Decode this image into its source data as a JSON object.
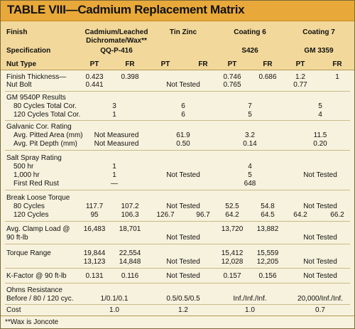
{
  "title": "TABLE VIII—Cadmium Replacement Matrix",
  "header": {
    "finish_label": "Finish",
    "spec_label": "Specification",
    "nut_type_label": "Nut Type",
    "col1_l1": "Cadmium/Leached",
    "col1_l2": "Dichromate/Wax**",
    "col1_spec": "QQ-P-416",
    "col2": "Tin Zinc",
    "col3": "Coating 6",
    "col3_spec": "S426",
    "col4": "Coating 7",
    "col4_spec": "GM 3359",
    "pt": "PT",
    "fr": "FR"
  },
  "rows": {
    "thickness_l1": "Finish Thickness—",
    "thickness_l2": "Nut Bolt",
    "th_c1pt": "0.423",
    "th_c1fr": "0.398",
    "th_c1b": "0.441",
    "th_c2": "Not Tested",
    "th_c3pt": "0.746",
    "th_c3fr": "0.686",
    "th_c3b": "0.765",
    "th_c4pt": "1.2",
    "th_c4fr": "1",
    "th_c4b": "0.77",
    "gm_label": "GM 9540P Results",
    "gm80_label": "80 Cycles Total Cor.",
    "gm120_label": "120 Cycles Total Cor.",
    "gm80": [
      "3",
      "6",
      "7",
      "5"
    ],
    "gm120": [
      "1",
      "6",
      "5",
      "4"
    ],
    "gal_label": "Galvanic Cor. Rating",
    "gal_area_label": "Avg. Pitted Area (mm)",
    "gal_depth_label": "Avg. Pit Depth (mm)",
    "gal_area": [
      "Not Measured",
      "61.9",
      "3.2",
      "11.5"
    ],
    "gal_depth": [
      "Not Measured",
      "0.50",
      "0.14",
      "0.20"
    ],
    "salt_label": "Salt Spray Rating",
    "salt500_label": "500 hr",
    "salt1000_label": "1,000 hr",
    "saltred_label": "First Red Rust",
    "salt500_c1": "1",
    "salt1000_c1": "1",
    "saltred_c1": "—",
    "salt_c2": "Not Tested",
    "salt500_c3": "4",
    "salt1000_c3": "5",
    "saltred_c3": "648",
    "salt_c4": "Not Tested",
    "torque_label": "Break Loose Torque",
    "torque80_label": "80 Cycles",
    "torque120_label": "120 Cycles",
    "torque80_c1pt": "117.7",
    "torque80_c1fr": "107.2",
    "torque80_c2": "Not Tested",
    "torque80_c3pt": "52.5",
    "torque80_c3fr": "54.8",
    "torque80_c4": "Not Tested",
    "torque120_c1pt": "95",
    "torque120_c1fr": "106.3",
    "torque120_c2pt": "126.7",
    "torque120_c2fr": "96.7",
    "torque120_c3pt": "64.2",
    "torque120_c3fr": "64.5",
    "torque120_c4pt": "64.2",
    "torque120_c4fr": "66.2",
    "clamp_l1": "Avg. Clamp Load @",
    "clamp_l2": "90 ft-lb",
    "clamp_c1pt": "16,483",
    "clamp_c1fr": "18,701",
    "clamp_c2": "Not Tested",
    "clamp_c3pt": "13,720",
    "clamp_c3fr": "13,882",
    "clamp_c4": "Not Tested",
    "range_label": "Torque Range",
    "range_c1pt_a": "19,844",
    "range_c1fr_a": "22,554",
    "range_c1pt_b": "13,123",
    "range_c1fr_b": "14,848",
    "range_c2": "Not Tested",
    "range_c3pt_a": "15,412",
    "range_c3fr_a": "15,559",
    "range_c3pt_b": "12,028",
    "range_c3fr_b": "12,205",
    "range_c4": "Not Tested",
    "kf_label": "K-Factor @ 90 ft-lb",
    "kf_c1pt": "0.131",
    "kf_c1fr": "0.116",
    "kf_c2": "Not Tested",
    "kf_c3pt": "0.157",
    "kf_c3fr": "0.156",
    "kf_c4": "Not Tested",
    "ohms_l1": "Ohms Resistance",
    "ohms_l2": "Before / 80 / 120 cyc.",
    "ohms": [
      "1/0.1/0.1",
      "0.5/0.5/0.5",
      "Inf./Inf./Inf.",
      "20,000/Inf./Inf."
    ],
    "cost_label": "Cost",
    "cost": [
      "1.0",
      "1.2",
      "1.0",
      "0.7"
    ]
  },
  "footnote": "**Wax is Joncote"
}
